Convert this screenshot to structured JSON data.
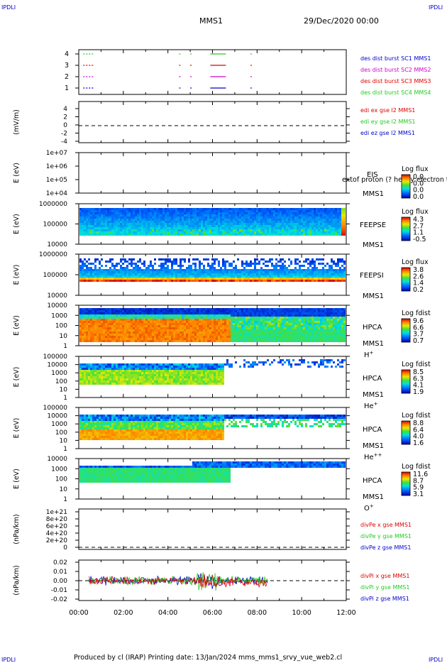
{
  "header": {
    "corner_tl": "IPDLI",
    "corner_tr": "IPDLI",
    "corner_bl": "IPDLI",
    "corner_br": "IPDLI",
    "mission": "MMS1",
    "datetime": "29/Dec/2020 00:00"
  },
  "footer": {
    "text": "Produced by cl (IRAP)   Printing date: 13/Jan/2024   mms_mms1_srvy_vue_web2.cl"
  },
  "colors": {
    "red": "#e00000",
    "green": "#22cc22",
    "blue": "#0000cc",
    "magenta": "#d000d0",
    "axis": "#000000"
  },
  "chart_data": [
    {
      "type": "line",
      "name": "burst_availability",
      "yticks": [
        "1",
        "2",
        "3",
        "4"
      ],
      "legend": [
        {
          "label": "des dist burst SC1 MMS1",
          "color": "#0000cc"
        },
        {
          "label": "des dist burst SC2 MMS2",
          "color": "#d000d0"
        },
        {
          "label": "des dist burst SC3 MMS3",
          "color": "#e00000"
        },
        {
          "label": "des dist burst SC4 MMS4",
          "color": "#22cc22"
        }
      ],
      "segments_hours": [
        [
          0.2,
          0.7
        ],
        [
          4.5,
          4.55
        ],
        [
          5.0,
          5.05
        ],
        [
          5.9,
          6.6
        ],
        [
          7.7,
          7.75
        ]
      ]
    },
    {
      "type": "line",
      "name": "edi_e",
      "ylabel": "(mV/m)",
      "yticks": [
        "4",
        "2",
        "0",
        "-2",
        "-4"
      ],
      "legend": [
        {
          "label": "edi ex gse l2 MMS1",
          "color": "#e00000"
        },
        {
          "label": "edi ey gse l2 MMS1",
          "color": "#22cc22"
        },
        {
          "label": "edi ez gse l2 MMS1",
          "color": "#0000cc"
        }
      ]
    },
    {
      "type": "heatmap",
      "name": "EIS",
      "ylabel": "E (eV)",
      "yticks": [
        "1e+07",
        "1e+06",
        "1e+05",
        "1e+04"
      ],
      "labels": [
        "EIS",
        "MMS1"
      ],
      "overlay": "extof proton (? heavy electron to",
      "colorbar_title": "Log flux",
      "colorbar_ticks": [
        "0.0",
        "0.0",
        "0.0",
        "0.0"
      ]
    },
    {
      "type": "heatmap",
      "name": "FEEPSE",
      "ylabel": "E (eV)",
      "yticks": [
        "1000000",
        "100000",
        "10000"
      ],
      "labels": [
        "FEEPSE",
        "MMS1"
      ],
      "colorbar_title": "Log flux",
      "colorbar_ticks": [
        "4.3",
        "2.7",
        "1.1",
        "-0.5"
      ]
    },
    {
      "type": "heatmap",
      "name": "FEEPSI",
      "ylabel": "E (eV)",
      "yticks": [
        "1000000",
        "100000",
        "10000"
      ],
      "labels": [
        "FEEPSI",
        "MMS1"
      ],
      "colorbar_title": "Log flux",
      "colorbar_ticks": [
        "3.8",
        "2.6",
        "1.4",
        "0.2"
      ]
    },
    {
      "type": "heatmap",
      "name": "HPCA_H",
      "ylabel": "E (eV)",
      "yticks": [
        "10000",
        "1000",
        "100",
        "10",
        "1"
      ],
      "labels": [
        "HPCA",
        "MMS1",
        "H+"
      ],
      "colorbar_title": "Log fdist",
      "colorbar_ticks": [
        "9.6",
        "6.6",
        "3.7",
        "0.7"
      ]
    },
    {
      "type": "heatmap",
      "name": "HPCA_He",
      "ylabel": "E (eV)",
      "yticks": [
        "100000",
        "10000",
        "1000",
        "100",
        "10",
        "1"
      ],
      "labels": [
        "HPCA",
        "MMS1",
        "He+"
      ],
      "colorbar_title": "Log fdist",
      "colorbar_ticks": [
        "8.5",
        "6.3",
        "4.1",
        "1.9"
      ]
    },
    {
      "type": "heatmap",
      "name": "HPCA_He2",
      "ylabel": "E (eV)",
      "yticks": [
        "100000",
        "10000",
        "1000",
        "100",
        "10",
        "1"
      ],
      "labels": [
        "HPCA",
        "MMS1",
        "He++"
      ],
      "colorbar_title": "Log fdist",
      "colorbar_ticks": [
        "8.8",
        "6.4",
        "4.0",
        "1.6"
      ]
    },
    {
      "type": "heatmap",
      "name": "HPCA_O",
      "ylabel": "E (eV)",
      "yticks": [
        "10000",
        "1000",
        "100",
        "10",
        "1"
      ],
      "labels": [
        "HPCA",
        "MMS1",
        "O+"
      ],
      "colorbar_title": "Log fdist",
      "colorbar_ticks": [
        "11.6",
        "8.7",
        "5.9",
        "3.1"
      ]
    },
    {
      "type": "line",
      "name": "divPe",
      "ylabel": "(nPa/km)",
      "yticks": [
        "1e+21",
        "8e+20",
        "6e+20",
        "4e+20",
        "2e+20",
        "0"
      ],
      "legend": [
        {
          "label": "divPe x gse MMS1",
          "color": "#e00000"
        },
        {
          "label": "divPe y gse MMS1",
          "color": "#22cc22"
        },
        {
          "label": "divPe z gse MMS1",
          "color": "#0000cc"
        }
      ]
    },
    {
      "type": "line",
      "name": "divPi",
      "ylabel": "(nPa/km)",
      "yticks": [
        "0.02",
        "0.01",
        "0.00",
        "-0.01",
        "-0.02"
      ],
      "ylim": [
        -0.02,
        0.02
      ],
      "legend": [
        {
          "label": "divPi x gse MMS1",
          "color": "#e00000"
        },
        {
          "label": "divPi y gse MMS1",
          "color": "#22cc22"
        },
        {
          "label": "divPi z gse MMS1",
          "color": "#0000cc"
        }
      ],
      "data_end_hour": 8.5
    }
  ],
  "xaxis": {
    "ticks": [
      "00:00",
      "02:00",
      "04:00",
      "06:00",
      "08:00",
      "10:00",
      "12:00"
    ],
    "range_hours": [
      0,
      12
    ]
  }
}
